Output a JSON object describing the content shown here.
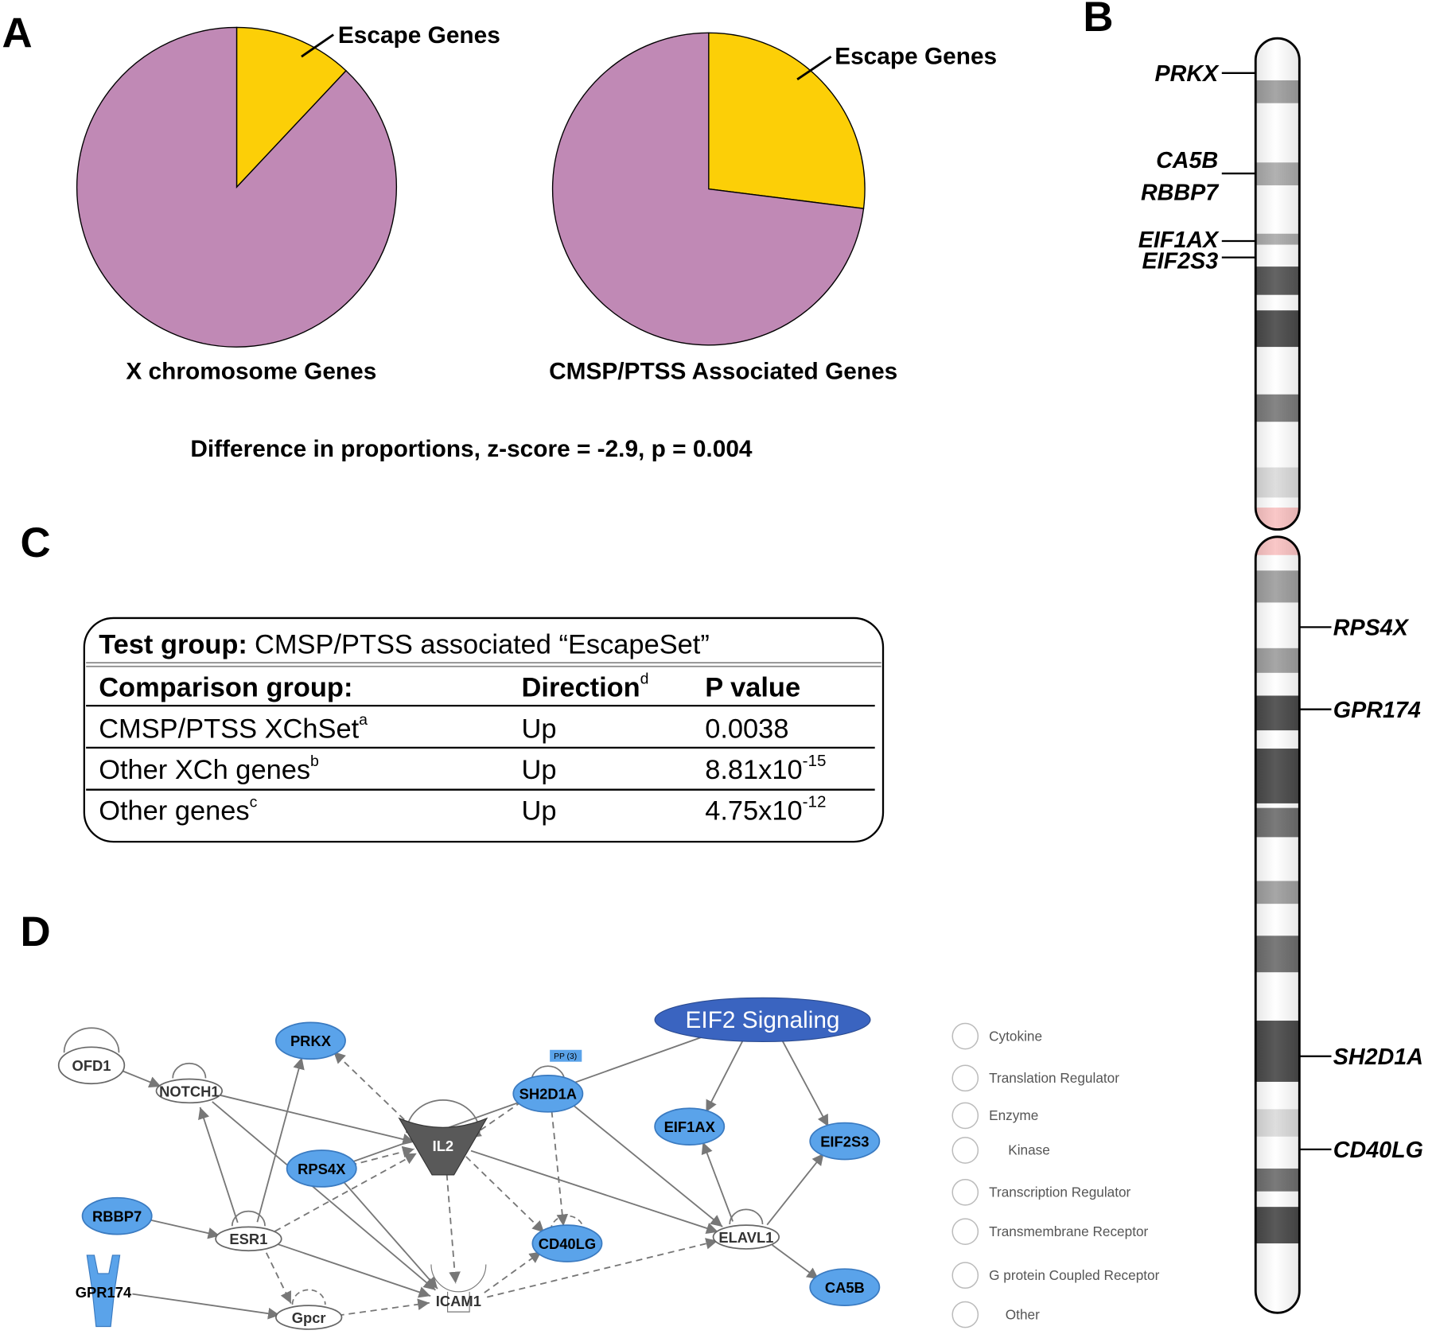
{
  "panels": [
    "A",
    "B",
    "C",
    "D"
  ],
  "chart_data": [
    {
      "type": "pie",
      "title": "X chromosome Genes",
      "categories": [
        "Escape Genes",
        null
      ],
      "values": [
        12,
        88
      ],
      "colors": [
        "#fccf07",
        "#c089b5"
      ]
    },
    {
      "type": "pie",
      "title": "CMSP/PTSS Associated Genes",
      "categories": [
        "Escape Genes",
        null
      ],
      "values": [
        27,
        73
      ],
      "colors": [
        "#fccf07",
        "#c089b5"
      ]
    }
  ],
  "stat_note": "Difference in proportions, z-score = -2.9, p = 0.004",
  "table": {
    "title_key": "Test group:",
    "title_value": "CMSP/PTSS associated “EscapeSet”",
    "columns": [
      {
        "text": "Comparison group:"
      },
      {
        "text": "Direction",
        "note": "d"
      },
      {
        "text": "P value"
      }
    ],
    "rows": [
      {
        "group": "CMSP/PTSS XChSet",
        "note": "a",
        "direction": "Up",
        "p": "0.0038"
      },
      {
        "group": "Other XCh genes",
        "note": "b",
        "direction": "Up",
        "p": "8.81x10",
        "p_exp": "-15"
      },
      {
        "group": "Other genes",
        "note": "c",
        "direction": "Up",
        "p": "4.75x10",
        "p_exp": "-12"
      }
    ]
  },
  "chromosome": {
    "genes": [
      "PRKX",
      "CA5B",
      "RBBP7",
      "EIF1AX",
      "EIF2S3",
      "RPS4X",
      "GPR174",
      "SH2D1A",
      "CD40LG"
    ]
  },
  "network": {
    "nodes": [
      "OFD1",
      "NOTCH1",
      "PRKX",
      "RPS4X",
      "RBBP7",
      "GPR174",
      "ESR1",
      "Gpcr",
      "IL2",
      "SH2D1A",
      "CD40LG",
      "ICAM1",
      "EIF2 Signaling",
      "EIF1AX",
      "EIF2S3",
      "ELAVL1",
      "CA5B"
    ],
    "tag": "PP (3)",
    "legend": [
      "Cytokine",
      "Translation Regulator",
      "Enzyme",
      "Kinase",
      "Transcription Regulator",
      "Transmembrane Receptor",
      "G protein Coupled Receptor",
      "Other"
    ]
  }
}
